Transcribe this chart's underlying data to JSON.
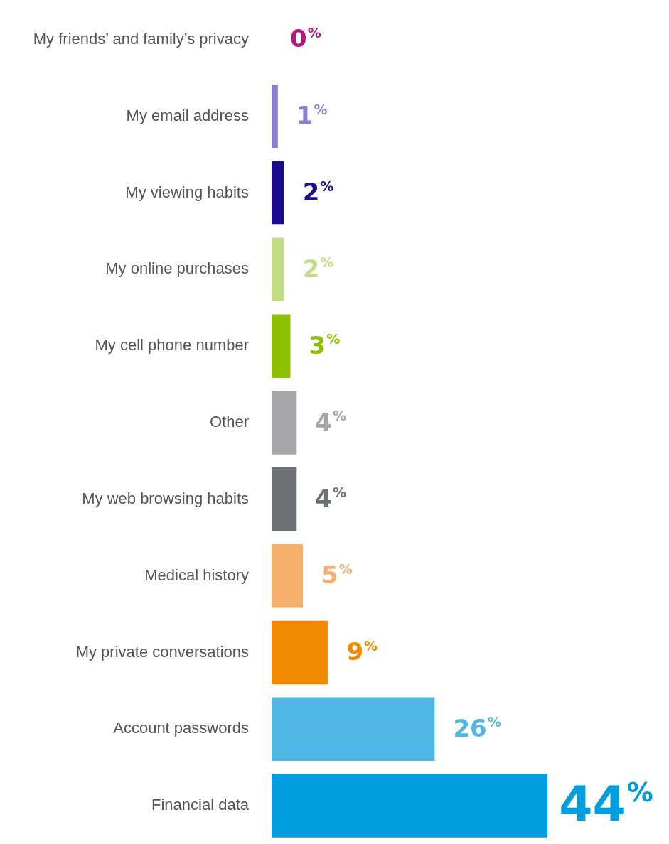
{
  "chart_data": {
    "type": "bar",
    "orientation": "horizontal",
    "categories": [
      "My friends’ and family’s privacy",
      "My email address",
      "My viewing habits",
      "My online purchases",
      "My cell phone number",
      "Other",
      "My web browsing habits",
      "Medical history",
      "My private conversations",
      "Account passwords",
      "Financial data"
    ],
    "values": [
      0,
      1,
      2,
      2,
      3,
      4,
      4,
      5,
      9,
      26,
      44
    ],
    "colors": [
      "#b5177f",
      "#8a7fcf",
      "#1a0b8f",
      "#c2dd85",
      "#8cc000",
      "#a6a6a8",
      "#6d7075",
      "#f5b06b",
      "#f08a00",
      "#4fb6e6",
      "#009ddf"
    ],
    "value_labels": [
      "0%",
      "1%",
      "2%",
      "2%",
      "3%",
      "4%",
      "4%",
      "5%",
      "9%",
      "26%",
      "44%"
    ],
    "grid": false,
    "legend": false
  }
}
